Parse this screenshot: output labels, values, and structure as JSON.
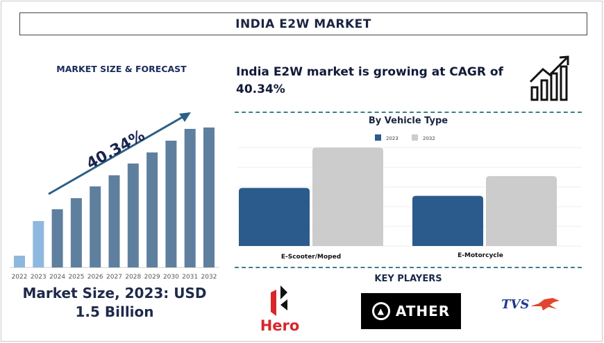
{
  "title": "INDIA E2W MARKET",
  "left": {
    "heading": "MARKET SIZE & FORECAST",
    "market_size_line1": "Market Size, 2023: USD",
    "market_size_line2": "1.5 Billion"
  },
  "cagr_text": "India E2W market is growing at CAGR of 40.34%",
  "key_players": {
    "heading": "KEY PLAYERS",
    "players": [
      "Hero",
      "ATHER",
      "TVS"
    ]
  },
  "chart_data": [
    {
      "type": "bar",
      "title": "MARKET SIZE & FORECAST",
      "categories": [
        "2022",
        "2023",
        "2024",
        "2025",
        "2026",
        "2027",
        "2028",
        "2029",
        "2030",
        "2031",
        "2032"
      ],
      "values": [
        17,
        67,
        84,
        100,
        117,
        133,
        150,
        166,
        183,
        200,
        202
      ],
      "value_note": "relative bar heights, no value axis shown",
      "annotation": "40.34%",
      "highlight_categories": [
        "2022",
        "2023"
      ],
      "colors": {
        "highlight": "#8fb8de",
        "default": "#5f7f9f",
        "arrow": "#2c5f86",
        "annotation": "#1a2450"
      },
      "grid": false
    },
    {
      "type": "bar",
      "title": "By Vehicle Type",
      "categories": [
        "E-Scooter/Moped",
        "E-Motorcycle"
      ],
      "series": [
        {
          "name": "2023",
          "values": [
            2.95,
            2.55
          ],
          "color": "#2a5b8c"
        },
        {
          "name": "2032",
          "values": [
            5.0,
            3.55
          ],
          "color": "#cccccc"
        }
      ],
      "ylim": [
        0,
        5
      ],
      "grid": true,
      "legend": "top-center"
    }
  ]
}
